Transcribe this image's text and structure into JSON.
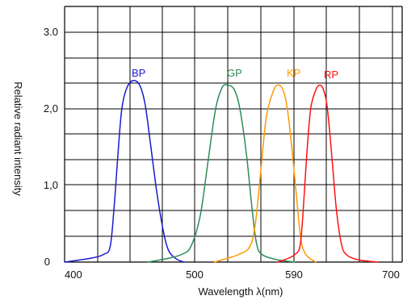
{
  "chart_data": {
    "type": "line",
    "title": "",
    "xlabel": "Wavelength λ(nm)",
    "ylabel": "Relative radiant intensity",
    "xlim": [
      400,
      700
    ],
    "ylim": [
      0,
      3.0
    ],
    "grid": true,
    "legend": "inline labels",
    "x_ticks": [
      {
        "value": 400,
        "label": "400"
      },
      {
        "value": 500,
        "label": "500"
      },
      {
        "value": 590,
        "label": "590"
      },
      {
        "value": 700,
        "label": "700"
      }
    ],
    "y_ticks": [
      {
        "value": 0,
        "label": "0"
      },
      {
        "value": 1.0,
        "label": "1,0"
      },
      {
        "value": 2.0,
        "label": "2,0"
      },
      {
        "value": 3.0,
        "label": "3.0"
      }
    ],
    "series": [
      {
        "name": "BP",
        "color": "#1a1acc",
        "points": [
          [
            400,
            0.0
          ],
          [
            420,
            0.05
          ],
          [
            430,
            0.1
          ],
          [
            435,
            0.2
          ],
          [
            438,
            0.7
          ],
          [
            441,
            1.4
          ],
          [
            444,
            2.0
          ],
          [
            448,
            2.28
          ],
          [
            453,
            2.37
          ],
          [
            458,
            2.3
          ],
          [
            462,
            2.05
          ],
          [
            466,
            1.55
          ],
          [
            471,
            0.9
          ],
          [
            476,
            0.4
          ],
          [
            480,
            0.15
          ],
          [
            486,
            0.04
          ],
          [
            492,
            0.0
          ]
        ]
      },
      {
        "name": "GP",
        "color": "#2e8b57",
        "points": [
          [
            464,
            0.0
          ],
          [
            480,
            0.05
          ],
          [
            490,
            0.1
          ],
          [
            497,
            0.2
          ],
          [
            505,
            0.6
          ],
          [
            512,
            1.3
          ],
          [
            519,
            2.0
          ],
          [
            525,
            2.28
          ],
          [
            530,
            2.31
          ],
          [
            536,
            2.25
          ],
          [
            541,
            2.0
          ],
          [
            547,
            1.4
          ],
          [
            552,
            0.7
          ],
          [
            556,
            0.25
          ],
          [
            561,
            0.1
          ],
          [
            575,
            0.03
          ],
          [
            591,
            0.0
          ]
        ]
      },
      {
        "name": "KP",
        "color": "#ff9900",
        "points": [
          [
            518,
            0.0
          ],
          [
            530,
            0.05
          ],
          [
            540,
            0.1
          ],
          [
            550,
            0.2
          ],
          [
            555,
            0.5
          ],
          [
            560,
            1.2
          ],
          [
            565,
            1.9
          ],
          [
            571,
            2.22
          ],
          [
            575,
            2.31
          ],
          [
            580,
            2.25
          ],
          [
            584,
            2.0
          ],
          [
            588,
            1.5
          ],
          [
            593,
            0.8
          ],
          [
            597,
            0.3
          ],
          [
            602,
            0.1
          ],
          [
            612,
            0.0
          ]
        ]
      },
      {
        "name": "RP",
        "color": "#ff1111",
        "points": [
          [
            575,
            0.0
          ],
          [
            585,
            0.05
          ],
          [
            591,
            0.1
          ],
          [
            596,
            0.2
          ],
          [
            599,
            0.6
          ],
          [
            603,
            1.4
          ],
          [
            607,
            2.0
          ],
          [
            612,
            2.24
          ],
          [
            616,
            2.31
          ],
          [
            620,
            2.25
          ],
          [
            624,
            2.0
          ],
          [
            629,
            1.3
          ],
          [
            633,
            0.7
          ],
          [
            638,
            0.25
          ],
          [
            643,
            0.1
          ],
          [
            655,
            0.03
          ],
          [
            675,
            0.0
          ]
        ]
      }
    ]
  }
}
